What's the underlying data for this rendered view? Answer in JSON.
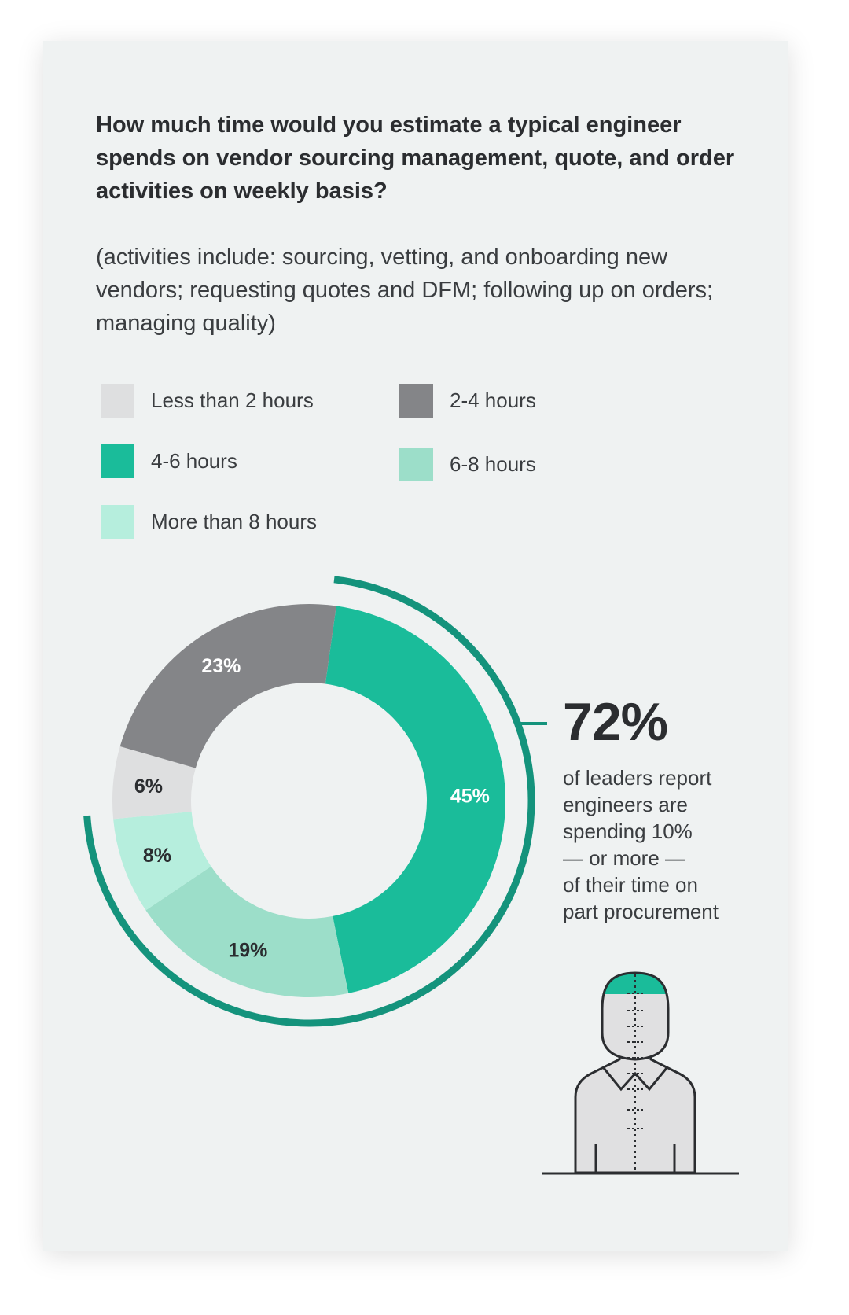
{
  "question": "How much time would you estimate a typical engineer spends on vendor sourcing management, quote, and order activities on weekly basis?",
  "subtext": "(activities include: sourcing, vetting, and onboarding new vendors; requesting quotes and DFM; following up on orders; managing quality)",
  "legend": [
    {
      "label": "Less than 2 hours",
      "color": "#dedfe0"
    },
    {
      "label": "2-4 hours",
      "color": "#848588"
    },
    {
      "label": "4-6 hours",
      "color": "#1abc9a"
    },
    {
      "label": "6-8 hours",
      "color": "#9cdec9"
    },
    {
      "label": "More than 8 hours",
      "color": "#b6eedd"
    }
  ],
  "chart_data": {
    "type": "pie",
    "style": "donut",
    "categories": [
      "4-6 hours",
      "6-8 hours",
      "More than 8 hours",
      "Less than 2 hours",
      "2-4 hours"
    ],
    "values": [
      45,
      19,
      8,
      6,
      23
    ],
    "labels": [
      "45%",
      "19%",
      "8%",
      "6%",
      "23%"
    ],
    "colors": [
      "#1abc9a",
      "#9cdec9",
      "#b6eedd",
      "#dedfe0",
      "#848588"
    ],
    "label_colors": [
      "#ffffff",
      "#2b2d30",
      "#2b2d30",
      "#2b2d30",
      "#ffffff"
    ],
    "highlight_arc": {
      "covers": [
        "4-6 hours",
        "6-8 hours",
        "More than 8 hours"
      ],
      "total": 72,
      "color": "#14937c"
    }
  },
  "callout": {
    "value": "72%",
    "lines": [
      "of leaders report",
      "engineers are",
      "spending 10%",
      "— or more —",
      "of their time on",
      "part procurement"
    ]
  },
  "illustration": {
    "icon": "engineer-head-icon",
    "accent": "#1abc9a",
    "fill": "#e0e0e1",
    "stroke": "#2b2d30"
  }
}
